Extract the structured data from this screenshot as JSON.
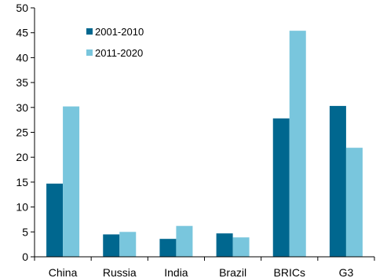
{
  "chart_data": {
    "type": "bar",
    "title": "",
    "xlabel": "",
    "ylabel": "",
    "categories": [
      "China",
      "Russia",
      "India",
      "Brazil",
      "BRICs",
      "G3"
    ],
    "series": [
      {
        "name": "2001-2010",
        "color": "#00678f",
        "values": [
          14.7,
          4.5,
          3.6,
          4.7,
          27.8,
          30.3
        ]
      },
      {
        "name": "2011-2020",
        "color": "#79c6dd",
        "values": [
          30.2,
          5.0,
          6.2,
          3.9,
          45.4,
          21.9
        ]
      }
    ],
    "ylim": [
      0,
      50
    ],
    "yticks": [
      "0",
      "5",
      "10",
      "15",
      "20",
      "25",
      "30",
      "35",
      "40",
      "45",
      "50"
    ],
    "grid": false,
    "legend_position": "top-left"
  }
}
